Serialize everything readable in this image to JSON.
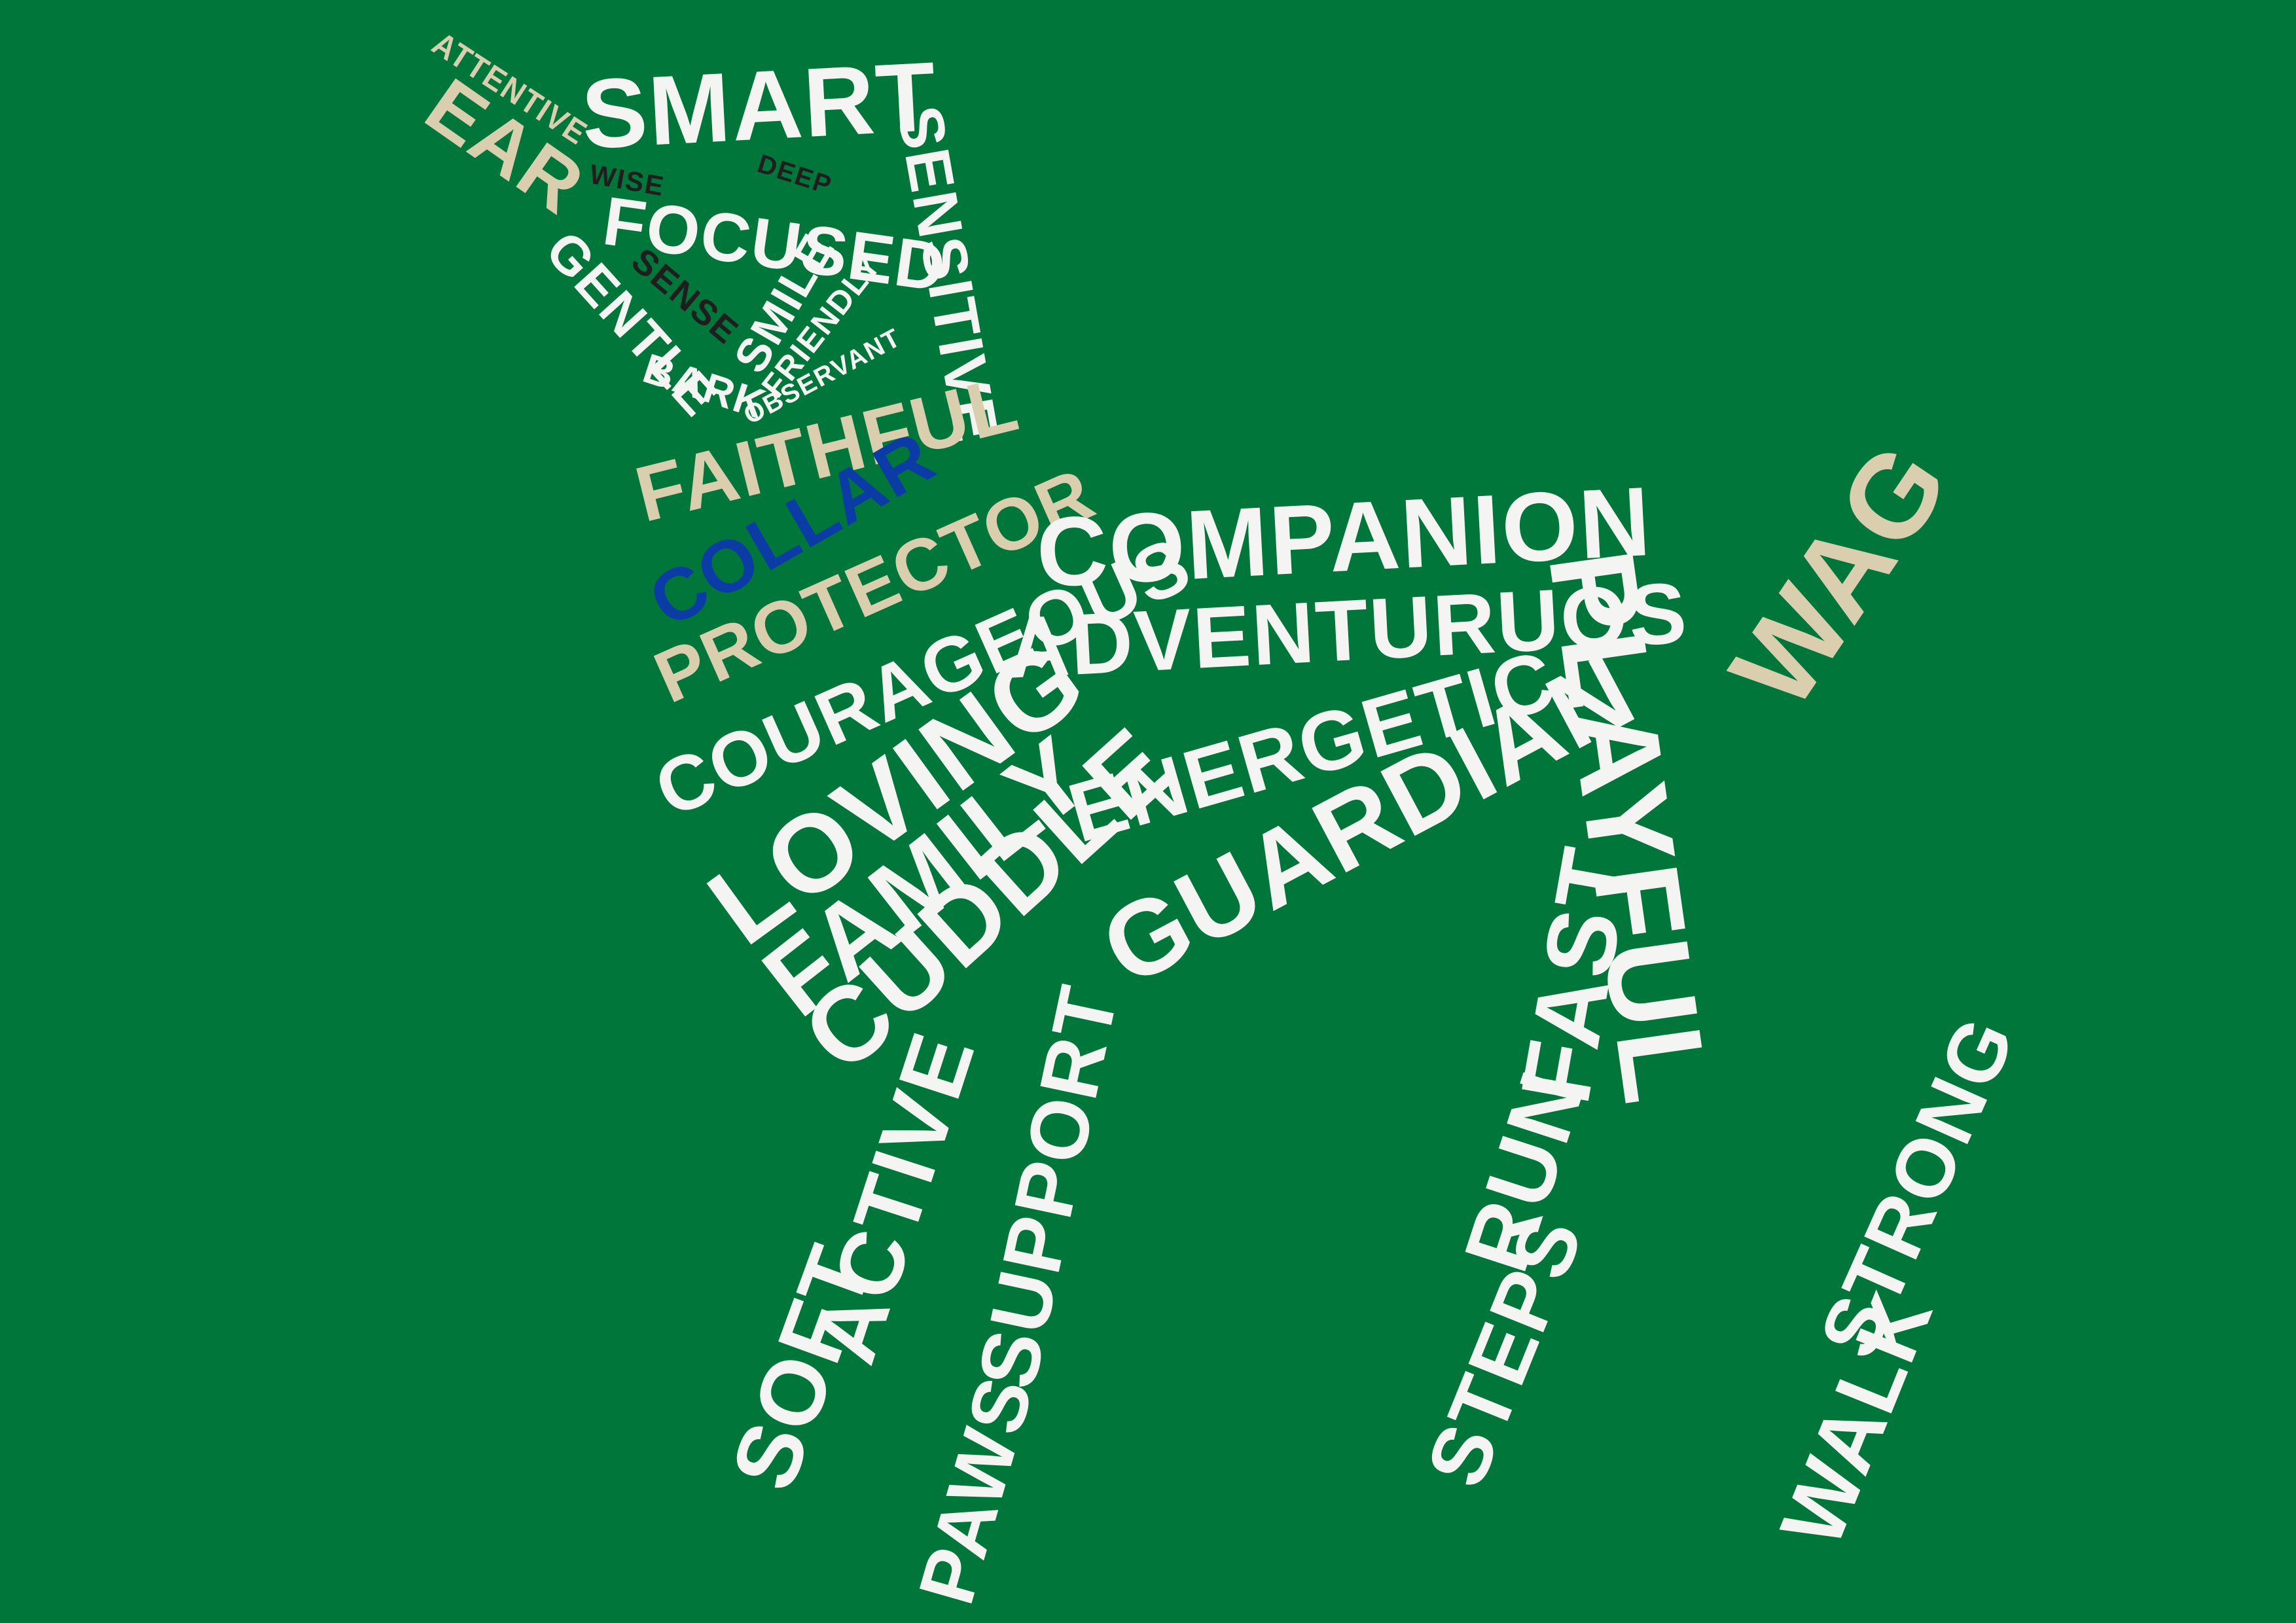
{
  "colors": {
    "background": "#00763a",
    "primary_word": "#f4f4f2",
    "accent_word": "#d9ceae",
    "collar_word": "#0b3ca6",
    "eye_word": "#1e1e1e"
  },
  "words": {
    "attentive": "ATTENTIVE",
    "ear": "EAR",
    "smart": "SMART",
    "wise": "WISE",
    "deep": "DEEP",
    "focused": "FOCUSED",
    "sense": "SENSE",
    "gentle": "GENTLE",
    "bark": "BARK",
    "smile": "SMILE",
    "friendly": "FRIENDLY",
    "observant": "OBSERVANT",
    "sensitive": "SENSITIVE",
    "faithful": "FAITHFUL",
    "collar": "COLLAR",
    "protector": "PROTECTOR",
    "companion": "COMPANION",
    "courageous": "COURAGEOUS",
    "adventuruos": "ADVENTURUOS",
    "loving": "LOVING",
    "family": "FAMILY",
    "energetic": "ENERGETIC",
    "cuddle": "CUDDLE",
    "guardian": "GUARDIAN",
    "playful": "PLAYFUL",
    "wag": "WAG",
    "soft": "SOFT",
    "active": "ACTIVE",
    "paws": "PAWS",
    "support": "SUPPORT",
    "steps": "STEPS",
    "run": "RUN",
    "fast": "FAST",
    "walk": "WALK",
    "strong": "STRONG"
  }
}
